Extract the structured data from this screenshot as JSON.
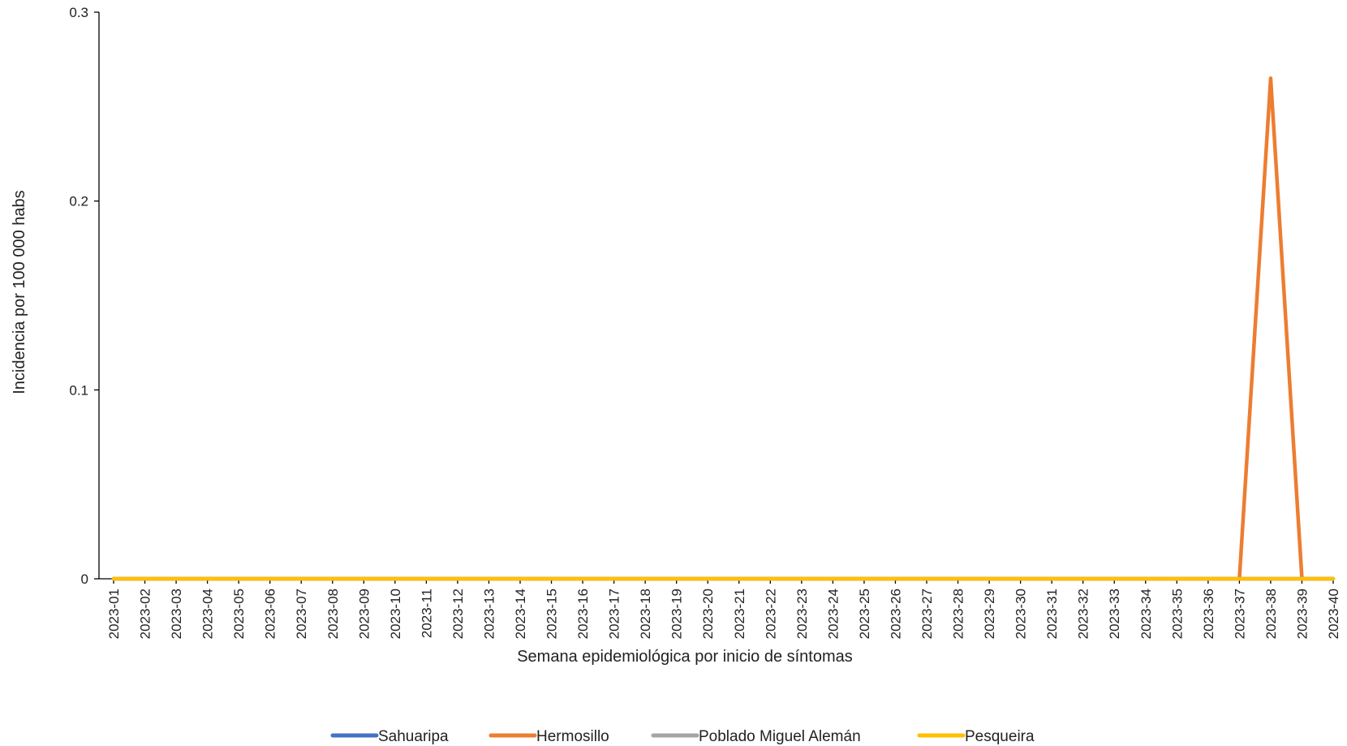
{
  "chart_data": {
    "type": "line",
    "title": "",
    "xlabel": "Semana epidemiológica por inicio de síntomas",
    "ylabel": "Incidencia por 100 000 habs",
    "ylim": [
      0,
      0.3
    ],
    "yticks": [
      "0",
      "0.1",
      "0.2",
      "0.3"
    ],
    "ytick_values": [
      0,
      0.1,
      0.2,
      0.3
    ],
    "grid": false,
    "legend_position": "bottom",
    "categories": [
      "2023-01",
      "2023-02",
      "2023-03",
      "2023-04",
      "2023-05",
      "2023-06",
      "2023-07",
      "2023-08",
      "2023-09",
      "2023-10",
      "2023-11",
      "2023-12",
      "2023-13",
      "2023-14",
      "2023-15",
      "2023-16",
      "2023-17",
      "2023-18",
      "2023-19",
      "2023-20",
      "2023-21",
      "2023-22",
      "2023-23",
      "2023-24",
      "2023-25",
      "2023-26",
      "2023-27",
      "2023-28",
      "2023-29",
      "2023-30",
      "2023-31",
      "2023-32",
      "2023-33",
      "2023-34",
      "2023-35",
      "2023-36",
      "2023-37",
      "2023-38",
      "2023-39",
      "2023-40"
    ],
    "series": [
      {
        "name": "Sahuaripa",
        "color": "#4472C4",
        "values": [
          0,
          0,
          0,
          0,
          0,
          0,
          0,
          0,
          0,
          0,
          0,
          0,
          0,
          0,
          0,
          0,
          0,
          0,
          0,
          0,
          0,
          0,
          0,
          0,
          0,
          0,
          0,
          0,
          0,
          0,
          0,
          0,
          0,
          0,
          0,
          0,
          0,
          0,
          0,
          0
        ]
      },
      {
        "name": "Hermosillo",
        "color": "#ED7D31",
        "values": [
          0,
          0,
          0,
          0,
          0,
          0,
          0,
          0,
          0,
          0,
          0,
          0,
          0,
          0,
          0,
          0,
          0,
          0,
          0,
          0,
          0,
          0,
          0,
          0,
          0,
          0,
          0,
          0,
          0,
          0,
          0,
          0,
          0,
          0,
          0,
          0,
          0,
          0.265,
          0,
          0
        ]
      },
      {
        "name": "Poblado Miguel Alemán",
        "color": "#A5A5A5",
        "values": [
          0,
          0,
          0,
          0,
          0,
          0,
          0,
          0,
          0,
          0,
          0,
          0,
          0,
          0,
          0,
          0,
          0,
          0,
          0,
          0,
          0,
          0,
          0,
          0,
          0,
          0,
          0,
          0,
          0,
          0,
          0,
          0,
          0,
          0,
          0,
          0,
          0,
          0,
          0,
          0
        ]
      },
      {
        "name": "Pesqueira",
        "color": "#FFC000",
        "values": [
          0,
          0,
          0,
          0,
          0,
          0,
          0,
          0,
          0,
          0,
          0,
          0,
          0,
          0,
          0,
          0,
          0,
          0,
          0,
          0,
          0,
          0,
          0,
          0,
          0,
          0,
          0,
          0,
          0,
          0,
          0,
          0,
          0,
          0,
          0,
          0,
          0,
          0,
          0,
          0
        ]
      }
    ]
  }
}
